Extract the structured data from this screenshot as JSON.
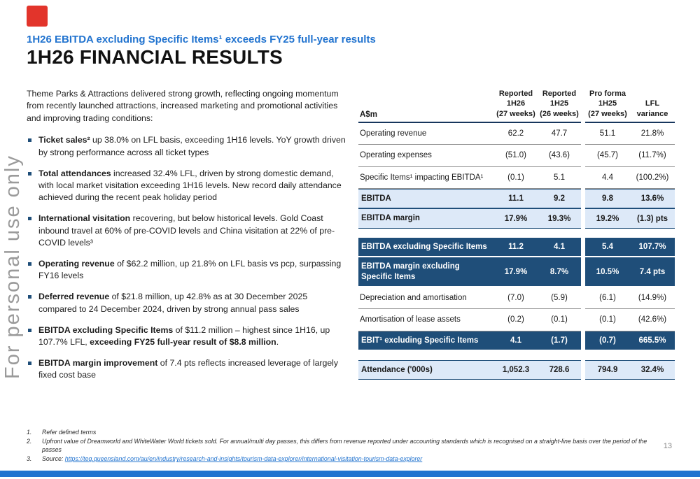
{
  "page": {
    "watermark": "For personal use only",
    "number": "13"
  },
  "header": {
    "subtitle": "1H26 EBITDA excluding Specific Items¹ exceeds FY25 full-year results",
    "title": "1H26 FINANCIAL RESULTS"
  },
  "intro": "Theme Parks & Attractions delivered strong growth, reflecting ongoing momentum from recently launched attractions, increased marketing and promotional activities and improving trading conditions:",
  "bullets": [
    {
      "segments": [
        {
          "t": "Ticket sales²",
          "b": true
        },
        {
          "t": " up 38.0% on LFL basis, exceeding 1H16 levels. YoY growth driven by strong performance across all ticket types",
          "b": false
        }
      ]
    },
    {
      "segments": [
        {
          "t": "Total attendances",
          "b": true
        },
        {
          "t": " increased 32.4% LFL, driven by strong domestic demand, with local market visitation exceeding 1H16 levels. New record daily attendance achieved during the recent peak holiday period",
          "b": false
        }
      ]
    },
    {
      "segments": [
        {
          "t": "International visitation",
          "b": true
        },
        {
          "t": " recovering, but below historical levels. Gold Coast inbound travel at 60% of pre-COVID levels and China visitation at 22% of pre-COVID levels³",
          "b": false
        }
      ]
    },
    {
      "segments": [
        {
          "t": "Operating revenue",
          "b": true
        },
        {
          "t": " of $62.2 million, up 21.8% on LFL basis vs pcp, surpassing FY16 levels",
          "b": false
        }
      ]
    },
    {
      "segments": [
        {
          "t": "Deferred revenue",
          "b": true
        },
        {
          "t": " of $21.8 million, up 42.8% as at 30 December 2025 compared to 24 December 2024, driven by strong annual pass sales",
          "b": false
        }
      ]
    },
    {
      "segments": [
        {
          "t": "EBITDA excluding Specific Items",
          "b": true
        },
        {
          "t": " of $11.2 million – highest since 1H16, up 107.7% LFL, ",
          "b": false
        },
        {
          "t": "exceeding FY25 full-year result of $8.8 million",
          "b": true
        },
        {
          "t": ".",
          "b": false
        }
      ]
    },
    {
      "segments": [
        {
          "t": "EBITDA margin improvement",
          "b": true
        },
        {
          "t": " of 7.4 pts reflects increased leverage of largely fixed cost base",
          "b": false
        }
      ]
    }
  ],
  "table": {
    "col_headers": [
      {
        "lines": [
          "A$m"
        ]
      },
      {
        "lines": [
          "Reported",
          "1H26",
          "(27 weeks)"
        ]
      },
      {
        "lines": [
          "Reported",
          "1H25",
          "(26 weeks)"
        ]
      },
      {
        "lines": [
          "Pro forma",
          "1H25",
          "(27 weeks)"
        ]
      },
      {
        "lines": [
          "LFL",
          "variance"
        ]
      }
    ],
    "rows": [
      {
        "style": "normal",
        "label": "Operating revenue",
        "values": [
          "62.2",
          "47.7",
          "51.1",
          "21.8%"
        ]
      },
      {
        "style": "normal",
        "label": "Operating expenses",
        "values": [
          "(51.0)",
          "(43.6)",
          "(45.7)",
          "(11.7%)"
        ]
      },
      {
        "style": "normal",
        "label": "Specific Items¹ impacting EBITDA¹",
        "values": [
          "(0.1)",
          "5.1",
          "4.4",
          "(100.2%)"
        ]
      },
      {
        "style": "highlight",
        "label": "EBITDA",
        "values": [
          "11.1",
          "9.2",
          "9.8",
          "13.6%"
        ]
      },
      {
        "style": "highlight",
        "label": "EBITDA margin",
        "values": [
          "17.9%",
          "19.3%",
          "19.2%",
          "(1.3) pts"
        ]
      },
      {
        "style": "spacer"
      },
      {
        "style": "dark",
        "label": "EBITDA excluding Specific Items",
        "values": [
          "11.2",
          "4.1",
          "5.4",
          "107.7%"
        ]
      },
      {
        "style": "dark",
        "label": "EBITDA margin excluding Specific Items",
        "values": [
          "17.9%",
          "8.7%",
          "10.5%",
          "7.4 pts"
        ]
      },
      {
        "style": "normal",
        "label": "Depreciation and amortisation",
        "values": [
          "(7.0)",
          "(5.9)",
          "(6.1)",
          "(14.9%)"
        ]
      },
      {
        "style": "normal",
        "label": "Amortisation of lease assets",
        "values": [
          "(0.2)",
          "(0.1)",
          "(0.1)",
          "(42.6%)"
        ]
      },
      {
        "style": "dark",
        "label": "EBIT¹ excluding Specific Items",
        "values": [
          "4.1",
          "(1.7)",
          "(0.7)",
          "665.5%"
        ]
      },
      {
        "style": "spacer"
      },
      {
        "style": "highlight",
        "label": "Attendance ('000s)",
        "values": [
          "1,052.3",
          "728.6",
          "794.9",
          "32.4%"
        ]
      }
    ]
  },
  "footnotes": [
    {
      "num": "1.",
      "text": "Refer defined terms"
    },
    {
      "num": "2.",
      "text": "Upfront value of Dreamworld and WhiteWater World tickets sold. For annual/multi day passes, this differs from revenue reported under accounting standards which is recognised on a straight-line basis over the period of the passes"
    },
    {
      "num": "3.",
      "pre": "Source: ",
      "link": "https://teq.queensland.com/au/en/industry/research-and-insights/tourism-data-explorer/international-visitation-tourism-data-explorer"
    }
  ],
  "colors": {
    "accent_blue": "#2173CF",
    "dark_navy": "#1F4E79",
    "light_blue": "#DDE9F8",
    "logo_red": "#E2342B"
  }
}
